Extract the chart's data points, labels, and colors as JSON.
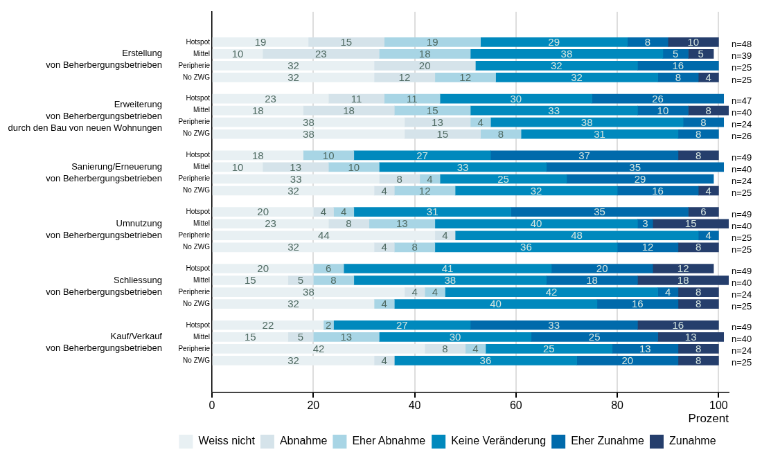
{
  "chart_data": {
    "type": "bar",
    "orientation": "horizontal",
    "stacked": true,
    "data_labels": true,
    "grid": "x",
    "legend": "bottom",
    "xlabel": "Prozent",
    "categories": [
      "Hotspot",
      "Mittel",
      "Peripherie",
      "No ZWG",
      "Hotspot",
      "Mittel",
      "Peripherie",
      "No ZWG",
      "Hotspot",
      "Mittel",
      "Peripherie",
      "No ZWG",
      "Hotspot",
      "Mittel",
      "Peripherie",
      "No ZWG",
      "Hotspot",
      "Mittel",
      "Peripherie",
      "No ZWG",
      "Hotspot",
      "Mittel",
      "Peripherie",
      "No ZWG"
    ],
    "xlim": [
      0,
      102
    ],
    "xticks": [
      0,
      20,
      40,
      60,
      80,
      100
    ],
    "series": [
      {
        "name": "Weiss nicht",
        "color": "#e8f0f3",
        "values": [
          19,
          10,
          32,
          32,
          23,
          18,
          38,
          38,
          18,
          10,
          33,
          32,
          20,
          23,
          44,
          32,
          20,
          15,
          38,
          32,
          22,
          15,
          42,
          32
        ]
      },
      {
        "name": "Abnahme",
        "color": "#d5e3ea",
        "values": [
          15,
          23,
          20,
          12,
          11,
          18,
          13,
          15,
          null,
          13,
          8,
          4,
          4,
          8,
          4,
          4,
          null,
          5,
          4,
          null,
          null,
          5,
          8,
          4
        ]
      },
      {
        "name": "Eher Abnahme",
        "color": "#a8d5e5",
        "values": [
          19,
          18,
          null,
          12,
          11,
          15,
          4,
          8,
          10,
          10,
          4,
          12,
          4,
          13,
          null,
          8,
          6,
          8,
          4,
          4,
          2,
          13,
          4,
          null
        ]
      },
      {
        "name": "Keine Veränderung",
        "color": "#0089bd",
        "values": [
          29,
          38,
          32,
          32,
          30,
          33,
          38,
          31,
          27,
          33,
          25,
          32,
          31,
          40,
          48,
          36,
          41,
          38,
          42,
          40,
          27,
          30,
          25,
          36
        ]
      },
      {
        "name": "Eher Zunahme",
        "color": "#006aab",
        "values": [
          8,
          5,
          16,
          8,
          26,
          10,
          8,
          8,
          37,
          35,
          29,
          16,
          35,
          3,
          4,
          12,
          20,
          18,
          4,
          16,
          33,
          25,
          13,
          20
        ]
      },
      {
        "name": "Zunahme",
        "color": "#253e6c",
        "values": [
          10,
          5,
          null,
          4,
          null,
          8,
          null,
          null,
          8,
          null,
          null,
          4,
          6,
          15,
          null,
          8,
          12,
          18,
          8,
          8,
          16,
          13,
          8,
          8
        ]
      }
    ],
    "annotations": [
      "Erstellung\nvon Beherbergungsbetrieben",
      "Erweiterung\nvon Beherbergungsbetrieben\ndurch den Bau von neuen Wohnungen",
      "Sanierung/Erneuerung\nvon Beherbergungsbetrieben",
      "Umnutzung\nvon Beherbergungsbetrieben",
      "Schliessung\nvon Beherbergungsbetrieben",
      "Kauf/Verkauf\nvon Beherbergungsbetrieben",
      "n=48",
      "n=39",
      "n=25",
      "n=25",
      "n=47",
      "n=40",
      "n=24",
      "n=26",
      "n=49",
      "n=40",
      "n=24",
      "n=25",
      "n=49",
      "n=40",
      "n=25",
      "n=25",
      "n=49",
      "n=40",
      "n=24",
      "n=25",
      "n=49",
      "n=40",
      "n=24",
      "n=25"
    ]
  }
}
